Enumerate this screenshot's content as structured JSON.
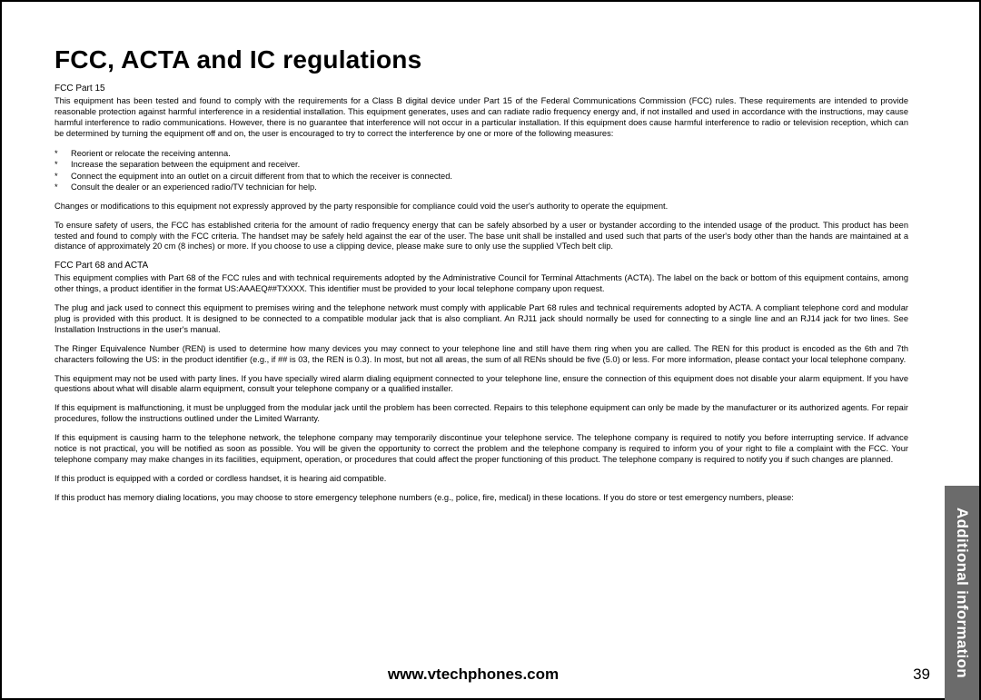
{
  "title": "FCC, ACTA and IC regulations",
  "section1_label": "FCC Part 15",
  "para1": "This equipment has been tested and found to comply with the requirements for a Class B digital device under Part 15 of the Federal Communications Commission (FCC) rules.  These requirements are intended to provide reasonable protection against harmful interference in a residential installation. This equipment generates, uses and can radiate radio frequency energy and, if not installed and used in accordance with the instructions, may cause harmful interference to radio communications. However, there is no guarantee that interference will not occur in a particular installation. If this equipment does cause harmful interference to radio or television reception, which can be determined by turning the equipment off and on, the user is encouraged to try to correct the interference by one or more of the following measures:",
  "bullets": [
    "Reorient or relocate the receiving antenna.",
    "Increase the separation between the equipment and receiver.",
    "Connect the equipment into an outlet on a circuit different from that to which the receiver is connected.",
    "Consult the dealer or an experienced radio/TV technician for help."
  ],
  "para2": "Changes or modifications to this equipment not expressly approved by the party responsible for compliance could void the user's authority to operate the equipment.",
  "para3": "To ensure safety of users, the FCC has established criteria for the amount of radio frequency energy that can be safely absorbed by a user or bystander according to the intended usage of the product. This product has been tested and found to comply with the FCC criteria. The handset may be safely held against the ear of the user. The base unit shall be installed and used such that parts of the user's body other than the hands are maintained at a distance of approximately 20 cm (8 inches) or more. If you choose to use a clipping device, please make sure to only use the supplied VTech belt clip.",
  "section2_label": "FCC Part 68 and ACTA",
  "para4": "This equipment complies with Part 68 of the FCC rules and with technical requirements adopted by the Administrative Council for Terminal Attachments (ACTA). The label on the back or bottom of this equipment contains, among other things, a product identifier in the format US:AAAEQ##TXXXX. This identifier must be provided to your local telephone company upon request.",
  "para5": "The plug and jack used to connect this equipment to premises wiring and the telephone network must comply with applicable Part 68 rules and technical requirements adopted by ACTA. A compliant telephone cord and modular plug is provided with this product. It is designed to be connected to a compatible modular jack that is also compliant. An RJ11 jack should normally be used for connecting to a single line and an RJ14 jack for two lines. See Installation Instructions in the user's manual.",
  "para6": "The Ringer Equivalence Number (REN) is used to determine how many devices you may connect to your telephone line and still have them ring when you are called. The REN for this product is encoded as the 6th and 7th characters following the US: in the product identifier (e.g., if ## is 03, the REN is 0.3). In most, but not all areas, the sum of all RENs should be five (5.0) or less. For more information, please contact your local telephone company.",
  "para7": "This equipment may not be used with party lines. If you have specially wired alarm dialing equipment connected to your telephone line, ensure the connection of this equipment does not disable your alarm equipment.  If you have questions about what will disable alarm equipment, consult your telephone company or a qualified installer.",
  "para8": "If this equipment is malfunctioning, it must be unplugged from the modular jack until the problem has been corrected. Repairs to this telephone equipment can only be made by the manufacturer or its authorized agents. For repair procedures, follow the instructions outlined under the Limited Warranty.",
  "para9": "If this equipment is causing harm to the telephone network, the telephone company may temporarily discontinue your telephone service. The telephone company is required to notify you before interrupting service. If advance notice is not practical, you will be notified as soon as possible. You will be given the opportunity to correct the problem and the telephone company is required to inform you of your right to file a complaint with the FCC. Your telephone company may make changes in its facilities, equipment, operation, or procedures that could affect the proper functioning of this product. The telephone company is required to notify you if such changes are planned.",
  "para10": "If this product is equipped with a corded or cordless handset, it is hearing aid compatible.",
  "para11": "If this product has memory dialing locations, you may choose to store emergency telephone numbers (e.g., police, fire, medical) in these locations. If you do store or test emergency numbers, please:",
  "side_tab": "Additional information",
  "footer_url": "www.vtechphones.com",
  "page_number": "39"
}
